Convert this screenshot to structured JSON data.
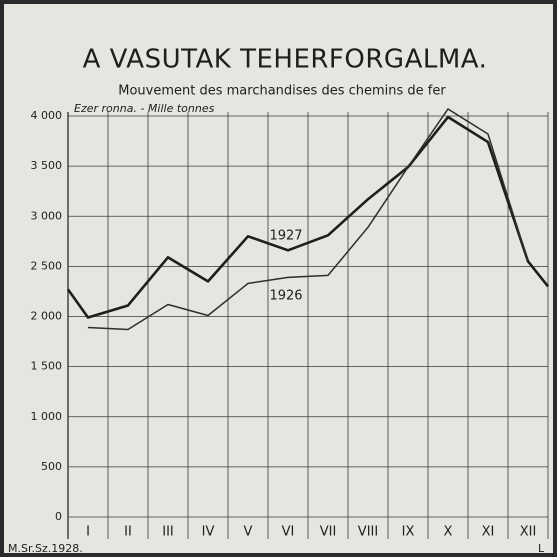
{
  "chart_data": {
    "type": "line",
    "title": "A VASUTAK TEHERFORGALMA.",
    "subtitle": "Mouvement des marchandises  des chemins de fer",
    "unit_label": "Ezer ronna. - Mille tonnes",
    "footnote": "M.Sr.Sz.1928.",
    "credit": "L",
    "categories": [
      null,
      "I",
      "II",
      "III",
      "IV",
      "V",
      "VI",
      "VII",
      "VIII",
      "IX",
      "X",
      "XI",
      "XII",
      null
    ],
    "series": [
      {
        "name": "1927",
        "color": "#1e1e1e",
        "values": [
          2270,
          1990,
          2110,
          2590,
          2350,
          2800,
          2660,
          2810,
          3170,
          3490,
          3990,
          3740,
          2550,
          2300
        ]
      },
      {
        "name": "1926",
        "color": "#2e2e2e",
        "values": [
          null,
          1890,
          1870,
          2120,
          2010,
          2330,
          2390,
          2410,
          2890,
          3490,
          4070,
          3820,
          2550,
          null
        ]
      }
    ],
    "ylim": [
      0,
      4000
    ],
    "yticks": [
      0,
      500,
      {
        "value": 1000,
        "label": "1 000"
      },
      {
        "value": 1500,
        "label": "1 500"
      },
      {
        "value": 2000,
        "label": "2 000"
      },
      {
        "value": 2500,
        "label": "2 500"
      },
      {
        "value": 3000,
        "label": "3 000"
      },
      {
        "value": 3500,
        "label": "3 500"
      },
      {
        "value": 4000,
        "label": "4 000"
      }
    ],
    "grid": true
  }
}
